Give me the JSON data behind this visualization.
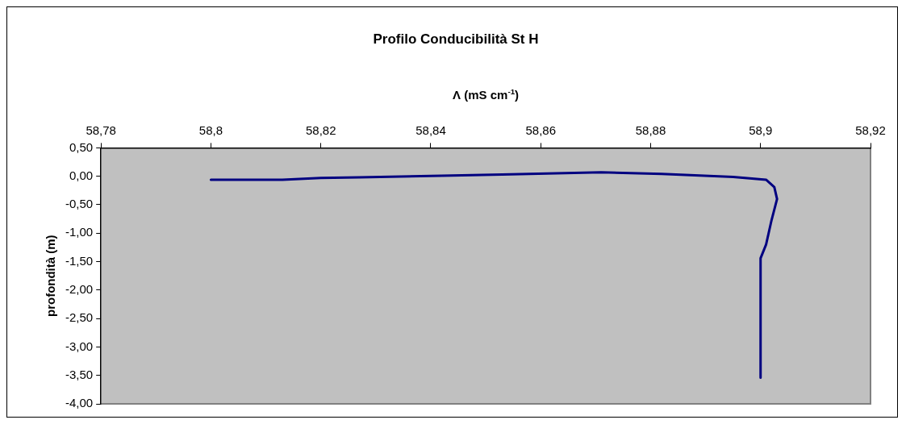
{
  "chart_data": {
    "type": "line",
    "title": "Profilo Conducibilità St H",
    "xlabel": "Λ (mS cm$^{-1}$)",
    "ylabel": "profondità (m)",
    "x": [
      58.8,
      58.813,
      58.82,
      58.827,
      58.842,
      58.853,
      58.871,
      58.882,
      58.895,
      58.901,
      58.9025,
      58.903,
      58.902,
      58.901,
      58.9,
      58.9
    ],
    "series": [
      {
        "color": "#000080",
        "values": [
          -0.06,
          -0.06,
          -0.03,
          -0.02,
          0.01,
          0.03,
          0.07,
          0.04,
          -0.01,
          -0.06,
          -0.19,
          -0.4,
          -0.77,
          -1.2,
          -1.44,
          -3.54
        ]
      }
    ],
    "xlim": [
      58.78,
      58.92
    ],
    "xticks": [
      {
        "value": 58.78,
        "label": "58,78"
      },
      {
        "value": 58.8,
        "label": "58,8"
      },
      {
        "value": 58.82,
        "label": "58,82"
      },
      {
        "value": 58.84,
        "label": "58,84"
      },
      {
        "value": 58.86,
        "label": "58,86"
      },
      {
        "value": 58.88,
        "label": "58,88"
      },
      {
        "value": 58.9,
        "label": "58,9"
      },
      {
        "value": 58.92,
        "label": "58,92"
      }
    ],
    "ylim": [
      -4,
      0.5
    ],
    "yticks": [
      {
        "value": 0.5,
        "label": "0,50"
      },
      {
        "value": 0,
        "label": "0,00"
      },
      {
        "value": -0.5,
        "label": "-0,50"
      },
      {
        "value": -1,
        "label": "-1,00"
      },
      {
        "value": -1.5,
        "label": "-1,50"
      },
      {
        "value": -2,
        "label": "-2,00"
      },
      {
        "value": -2.5,
        "label": "-2,50"
      },
      {
        "value": -3,
        "label": "-3,00"
      },
      {
        "value": -3.5,
        "label": "-3,50"
      },
      {
        "value": -4,
        "label": "-4,00"
      }
    ],
    "grid": false,
    "legend": false,
    "marker": "none",
    "line_style": "solid"
  }
}
